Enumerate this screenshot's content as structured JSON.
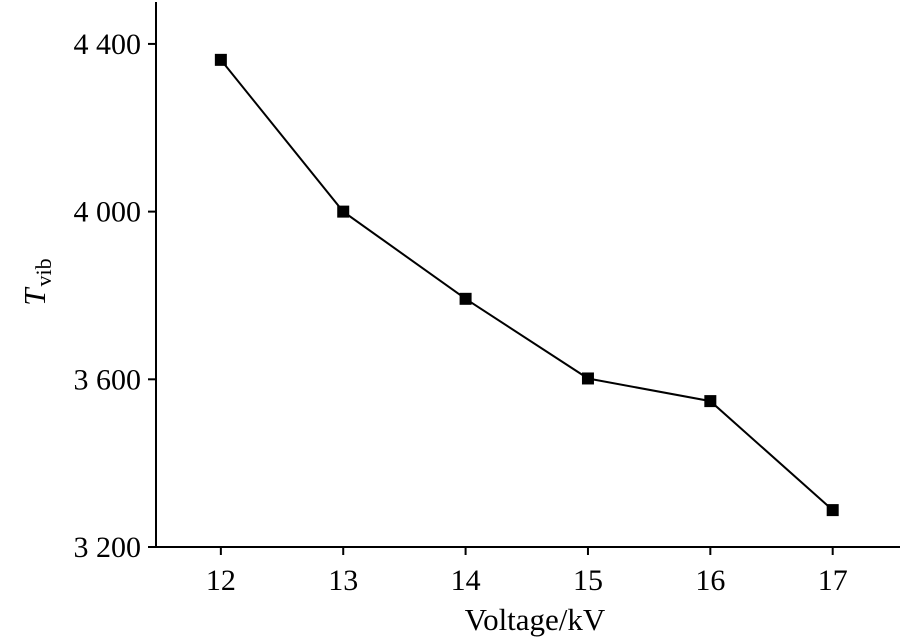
{
  "chart_data": {
    "type": "line",
    "title": "",
    "xlabel": "Voltage/kV",
    "ylabel": {
      "main": "T",
      "sub": "vib"
    },
    "x": [
      12,
      13,
      14,
      15,
      16,
      17
    ],
    "x_tick_labels": [
      "12",
      "13",
      "14",
      "15",
      "16",
      "17"
    ],
    "y_ticks": [
      3200,
      3600,
      4000,
      4400
    ],
    "y_tick_labels": [
      "3 200",
      "3 600",
      "4 000",
      "4 400"
    ],
    "xlim": [
      11.47,
      17.55
    ],
    "ylim": [
      3200,
      4500
    ],
    "series": [
      {
        "values": [
          4362,
          4000,
          3792,
          3602,
          3548,
          3288
        ]
      }
    ],
    "grid": false,
    "legend": "none",
    "marker": "square",
    "color": "#000000"
  }
}
